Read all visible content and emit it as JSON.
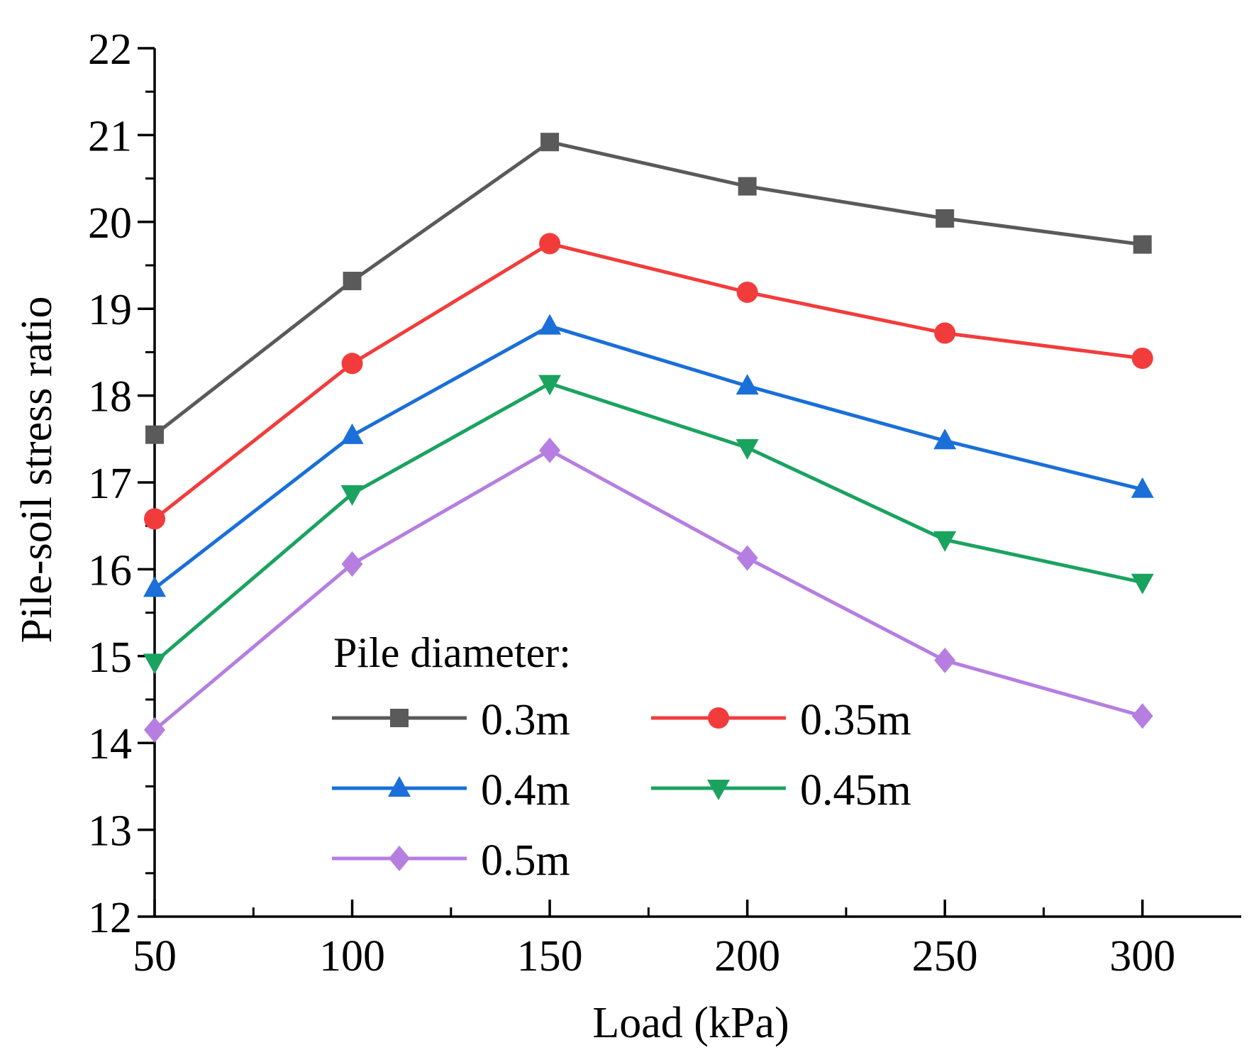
{
  "chart_data": {
    "type": "line",
    "title": "",
    "xlabel": "Load (kPa)",
    "ylabel": "Pile-soil stress ratio",
    "x": [
      50,
      100,
      150,
      200,
      250,
      300
    ],
    "xticks": [
      "50",
      "100",
      "150",
      "200",
      "250",
      "300"
    ],
    "yticks": [
      "12",
      "13",
      "14",
      "15",
      "16",
      "17",
      "18",
      "19",
      "20",
      "21",
      "22"
    ],
    "xlim": [
      50,
      325
    ],
    "ylim": [
      12,
      22
    ],
    "grid": false,
    "legend": {
      "title": "Pile diameter:",
      "placement": "bottom-center"
    },
    "series": [
      {
        "name": "0.3m",
        "marker": "square",
        "color": "#5a5a5a",
        "values": [
          17.55,
          19.32,
          20.92,
          20.41,
          20.04,
          19.74
        ]
      },
      {
        "name": "0.35m",
        "marker": "circle",
        "color": "#f23c3c",
        "values": [
          16.58,
          18.37,
          19.75,
          19.19,
          18.72,
          18.43
        ]
      },
      {
        "name": "0.4m",
        "marker": "triangle-up",
        "color": "#1a6fd9",
        "values": [
          15.78,
          17.54,
          18.8,
          18.11,
          17.48,
          16.92
        ]
      },
      {
        "name": "0.45m",
        "marker": "triangle-down",
        "color": "#1aa35f",
        "values": [
          14.93,
          16.87,
          18.14,
          17.4,
          16.34,
          15.85
        ]
      },
      {
        "name": "0.5m",
        "marker": "diamond",
        "color": "#b57ee0",
        "values": [
          14.15,
          16.06,
          17.37,
          16.13,
          14.95,
          14.31
        ]
      }
    ]
  }
}
